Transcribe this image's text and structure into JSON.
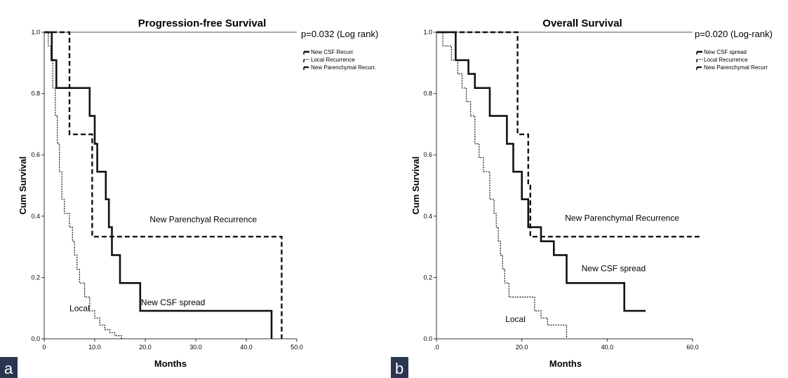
{
  "chart_data": [
    {
      "type": "line",
      "panel": "a",
      "title": "Progression-free Survival",
      "xlabel": "Months",
      "ylabel": "Cum Survival",
      "xlim": [
        0,
        50
      ],
      "ylim": [
        0,
        1.0
      ],
      "xticks": [
        "0",
        "10.0",
        "20.0",
        "30.0",
        "40.0",
        "50.0"
      ],
      "xtick_values": [
        0,
        10,
        20,
        30,
        40,
        50
      ],
      "yticks": [
        "0.0",
        "0.2",
        "0.4",
        "0.6",
        "0.8",
        "1.0"
      ],
      "ytick_values": [
        0,
        0.2,
        0.4,
        0.6,
        0.8,
        1.0
      ],
      "pvalue": "p=0.032 (Log rank)",
      "legend_position": "right",
      "legend": [
        "New CSF Recurr.",
        "Local Recurrence",
        "New Parenchymal Recurr."
      ],
      "series": [
        {
          "name": "New CSF Recurr.",
          "style": "solid",
          "x": [
            0,
            1.5,
            1.5,
            2.4,
            2.4,
            9.0,
            9.0,
            10.0,
            10.0,
            10.5,
            10.5,
            12.2,
            12.2,
            12.8,
            12.8,
            13.4,
            13.4,
            15.0,
            15.0,
            19.0,
            19.0,
            45.0,
            45.0
          ],
          "y": [
            1.0,
            1.0,
            0.909,
            0.909,
            0.818,
            0.818,
            0.727,
            0.727,
            0.636,
            0.636,
            0.545,
            0.545,
            0.455,
            0.455,
            0.364,
            0.364,
            0.273,
            0.273,
            0.182,
            0.182,
            0.091,
            0.091,
            0.0
          ]
        },
        {
          "name": "Local Recurrence",
          "style": "dotted",
          "x": [
            0,
            0.8,
            0.8,
            1.3,
            1.3,
            1.7,
            1.7,
            2.2,
            2.2,
            2.6,
            2.6,
            3.0,
            3.0,
            3.5,
            3.5,
            4.0,
            4.0,
            5.0,
            5.0,
            5.6,
            5.6,
            6.0,
            6.0,
            6.5,
            6.5,
            7.0,
            7.0,
            8.0,
            8.0,
            9.0,
            9.0,
            10.0,
            10.0,
            11.0,
            11.0,
            12.0,
            12.0,
            13.0,
            13.0,
            14.0,
            14.0,
            15.3,
            15.3
          ],
          "y": [
            1.0,
            1.0,
            0.955,
            0.955,
            0.909,
            0.909,
            0.818,
            0.818,
            0.727,
            0.727,
            0.636,
            0.636,
            0.545,
            0.545,
            0.455,
            0.455,
            0.409,
            0.409,
            0.364,
            0.364,
            0.318,
            0.318,
            0.273,
            0.273,
            0.227,
            0.227,
            0.182,
            0.182,
            0.136,
            0.136,
            0.091,
            0.091,
            0.068,
            0.068,
            0.045,
            0.045,
            0.03,
            0.03,
            0.02,
            0.02,
            0.01,
            0.01,
            0.0
          ]
        },
        {
          "name": "New Parenchymal Recurr.",
          "style": "dashed",
          "x": [
            0,
            5.0,
            5.0,
            9.5,
            9.5,
            47.0,
            47.0
          ],
          "y": [
            1.0,
            1.0,
            0.667,
            0.667,
            0.333,
            0.333,
            0.0
          ]
        }
      ],
      "annotations": [
        {
          "text": "New Parenchyal Recurrence",
          "x": 31.5,
          "y": 0.38
        },
        {
          "text": "New CSF spread",
          "x": 25.5,
          "y": 0.11
        },
        {
          "text": "Local",
          "x": 7.0,
          "y": 0.09
        }
      ]
    },
    {
      "type": "line",
      "panel": "b",
      "title": "Overall Survival",
      "xlabel": "Months",
      "ylabel": "Cum Survival",
      "xlim": [
        0,
        60
      ],
      "ylim": [
        0,
        1.0
      ],
      "xticks": [
        ".0",
        "20.0",
        "40.0",
        "60.0"
      ],
      "xtick_values": [
        0,
        20,
        40,
        60
      ],
      "yticks": [
        "0.0",
        "0.2",
        "0.4",
        "0.6",
        "0.8",
        "1.0"
      ],
      "ytick_values": [
        0,
        0.2,
        0.4,
        0.6,
        0.8,
        1.0
      ],
      "pvalue": "p=0.020 (Log-rank)",
      "legend_position": "right",
      "legend": [
        "New CSF spread",
        "Local Recurrence",
        "New Parenchymal Recurr"
      ],
      "series": [
        {
          "name": "New CSF spread",
          "style": "solid",
          "x": [
            0,
            4.5,
            4.5,
            7.5,
            7.5,
            9.0,
            9.0,
            12.5,
            12.5,
            16.5,
            16.5,
            18.0,
            18.0,
            20.0,
            20.0,
            21.5,
            21.5,
            24.5,
            24.5,
            27.5,
            27.5,
            30.5,
            30.5,
            44.0,
            44.0,
            49.0
          ],
          "y": [
            1.0,
            1.0,
            0.909,
            0.909,
            0.864,
            0.864,
            0.818,
            0.818,
            0.727,
            0.727,
            0.636,
            0.636,
            0.545,
            0.545,
            0.455,
            0.455,
            0.364,
            0.364,
            0.318,
            0.318,
            0.273,
            0.273,
            0.182,
            0.182,
            0.091,
            0.091
          ]
        },
        {
          "name": "Local Recurrence",
          "style": "dotted",
          "x": [
            0,
            1.5,
            1.5,
            3.5,
            3.5,
            5.0,
            5.0,
            6.0,
            6.0,
            7.0,
            7.0,
            8.0,
            8.0,
            9.0,
            9.0,
            10.0,
            10.0,
            11.0,
            11.0,
            12.5,
            12.5,
            13.5,
            13.5,
            14.0,
            14.0,
            14.5,
            14.5,
            15.0,
            15.0,
            15.5,
            15.5,
            16.0,
            16.0,
            17.0,
            17.0,
            23.0,
            23.0,
            24.5,
            24.5,
            26.0,
            26.0,
            30.5,
            30.5
          ],
          "y": [
            1.0,
            1.0,
            0.955,
            0.955,
            0.909,
            0.909,
            0.864,
            0.864,
            0.818,
            0.818,
            0.773,
            0.773,
            0.727,
            0.727,
            0.636,
            0.636,
            0.591,
            0.591,
            0.545,
            0.545,
            0.455,
            0.455,
            0.409,
            0.409,
            0.364,
            0.364,
            0.318,
            0.318,
            0.273,
            0.273,
            0.227,
            0.227,
            0.182,
            0.182,
            0.136,
            0.136,
            0.091,
            0.091,
            0.068,
            0.068,
            0.045,
            0.045,
            0.0
          ]
        },
        {
          "name": "New Parenchymal Recurr",
          "style": "dashed",
          "x": [
            0,
            19.0,
            19.0,
            21.5,
            21.5,
            22.0,
            22.0,
            62.0
          ],
          "y": [
            1.0,
            1.0,
            0.667,
            0.667,
            0.5,
            0.5,
            0.333,
            0.333
          ]
        }
      ],
      "annotations": [
        {
          "text": "New Parenchymal Recurrence",
          "x": 43.5,
          "y": 0.385
        },
        {
          "text": "New CSF spread",
          "x": 41.5,
          "y": 0.22
        },
        {
          "text": "Local",
          "x": 18.5,
          "y": 0.055
        }
      ]
    }
  ],
  "panel_labels": [
    "a",
    "b"
  ],
  "colors": {
    "line": "#111111",
    "frame_top": "#aaaaaa",
    "badge": "#2a3550"
  }
}
